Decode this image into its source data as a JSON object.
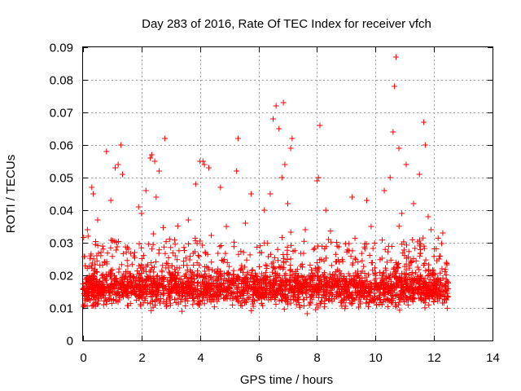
{
  "chart_data": {
    "type": "scatter",
    "title": "Day 283 of 2016, Rate Of TEC Index for receiver vfch",
    "xlabel": "GPS time / hours",
    "ylabel": "ROTI / TECUs",
    "xlim": [
      0,
      14
    ],
    "ylim": [
      0,
      0.09
    ],
    "x_ticks": [
      "0",
      "2",
      "4",
      "6",
      "8",
      "10",
      "12",
      "14"
    ],
    "y_ticks": [
      "0",
      "0.01",
      "0.02",
      "0.03",
      "0.04",
      "0.05",
      "0.06",
      "0.07",
      "0.08",
      "0.09"
    ],
    "grid": true,
    "marker": "+",
    "color": "#ff0000",
    "data_coverage_hours": [
      0,
      12.5
    ],
    "series": [
      {
        "name": "ROTI",
        "points": [
          [
            10.7,
            0.087
          ],
          [
            10.65,
            0.078
          ],
          [
            6.85,
            0.073
          ],
          [
            6.6,
            0.072
          ],
          [
            6.5,
            0.068
          ],
          [
            8.1,
            0.066
          ],
          [
            11.65,
            0.067
          ],
          [
            6.7,
            0.065
          ],
          [
            10.6,
            0.064
          ],
          [
            5.3,
            0.062
          ],
          [
            2.8,
            0.062
          ],
          [
            7.15,
            0.062
          ],
          [
            7.1,
            0.059
          ],
          [
            1.3,
            0.06
          ],
          [
            11.7,
            0.06
          ],
          [
            10.8,
            0.059
          ],
          [
            0.8,
            0.058
          ],
          [
            2.35,
            0.057
          ],
          [
            2.3,
            0.056
          ],
          [
            4.1,
            0.055
          ],
          [
            4.0,
            0.055
          ],
          [
            2.45,
            0.055
          ],
          [
            4.15,
            0.054
          ],
          [
            4.3,
            0.053
          ],
          [
            6.9,
            0.054
          ],
          [
            1.2,
            0.054
          ],
          [
            11.05,
            0.054
          ],
          [
            1.1,
            0.053
          ],
          [
            2.6,
            0.052
          ],
          [
            5.25,
            0.052
          ],
          [
            11.5,
            0.051
          ],
          [
            1.35,
            0.051
          ],
          [
            6.8,
            0.05
          ],
          [
            10.5,
            0.05
          ],
          [
            8.05,
            0.05
          ],
          [
            8.0,
            0.049
          ],
          [
            3.85,
            0.048
          ],
          [
            4.7,
            0.047
          ],
          [
            2.15,
            0.046
          ],
          [
            0.3,
            0.047
          ],
          [
            0.35,
            0.045
          ],
          [
            10.3,
            0.046
          ],
          [
            6.4,
            0.045
          ],
          [
            5.75,
            0.045
          ],
          [
            2.5,
            0.044
          ],
          [
            9.2,
            0.044
          ],
          [
            9.7,
            0.043
          ],
          [
            0.95,
            0.043
          ],
          [
            7.0,
            0.042
          ],
          [
            11.3,
            0.042
          ],
          [
            1.9,
            0.041
          ],
          [
            8.3,
            0.04
          ],
          [
            6.2,
            0.04
          ],
          [
            2.0,
            0.039
          ],
          [
            10.9,
            0.039
          ],
          [
            11.8,
            0.038
          ],
          [
            3.6,
            0.037
          ],
          [
            0.5,
            0.037
          ],
          [
            5.55,
            0.036
          ],
          [
            4.9,
            0.035
          ],
          [
            9.85,
            0.035
          ],
          [
            7.6,
            0.034
          ],
          [
            11.9,
            0.034
          ],
          [
            12.3,
            0.033
          ],
          [
            0.15,
            0.034
          ]
        ]
      }
    ]
  }
}
